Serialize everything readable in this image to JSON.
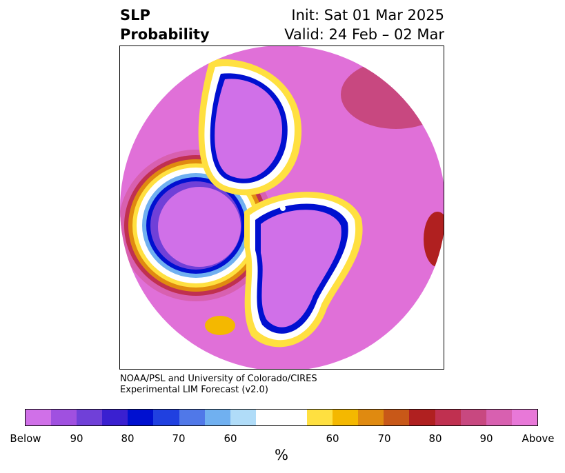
{
  "title": {
    "left_line1": "SLP",
    "left_line2": "Probability",
    "right_line1": "Init: Sat 01 Mar 2025",
    "right_line2": "Valid: 24 Feb – 02 Mar"
  },
  "credit": {
    "line1": "NOAA/PSL and University of Colorado/CIRES",
    "line2": "Experimental LIM Forecast (v2.0)"
  },
  "colorbar": {
    "unit": "%",
    "colors": [
      "#d070e8",
      "#a050e0",
      "#7040d8",
      "#3a20d0",
      "#0010d0",
      "#2040e0",
      "#5078e8",
      "#70b0f0",
      "#b0dcf8",
      "#ffffff",
      "#ffe040",
      "#f4b800",
      "#e08a10",
      "#c85818",
      "#b02020",
      "#c03050",
      "#c84880",
      "#d860b0",
      "#e878d8"
    ],
    "ticks": [
      "Below",
      "90",
      "80",
      "70",
      "60",
      "60",
      "70",
      "80",
      "90",
      "Above"
    ]
  },
  "map": {
    "projection": "north-polar-stereographic",
    "background_color": "#e070d8"
  }
}
